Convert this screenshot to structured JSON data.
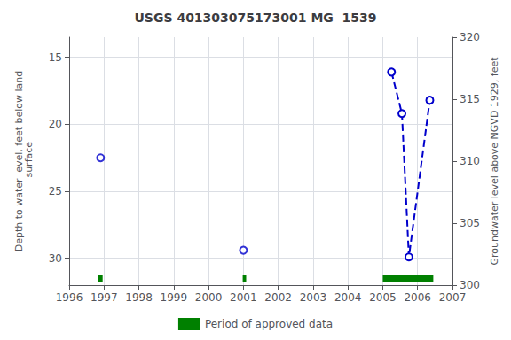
{
  "chart_data": {
    "type": "line",
    "title": "USGS 401303075173001 MG  1539",
    "ylabel": "Depth to water level, feet below land\n surface",
    "y2label": "Groundwater level above NGVD 1929, feet",
    "xlim": [
      1996,
      2007
    ],
    "xticks": [
      1996,
      1997,
      1998,
      1999,
      2000,
      2001,
      2002,
      2003,
      2004,
      2005,
      2006,
      2007
    ],
    "ylim": [
      32,
      13.5
    ],
    "yticks": [
      15,
      20,
      25,
      30
    ],
    "y2lim": [
      300,
      320
    ],
    "y2ticks": [
      300,
      305,
      310,
      315,
      320
    ],
    "grid": true,
    "series": [
      {
        "type": "scatter",
        "marker": "open_circle",
        "color": "#0000cc",
        "x": [
          1996.9,
          2001.0
        ],
        "values": [
          22.5,
          29.4
        ]
      },
      {
        "type": "line",
        "line_style": "dashed",
        "marker": "open_circle",
        "color": "#0000cc",
        "x": [
          2005.25,
          2005.55,
          2005.75,
          2006.35
        ],
        "values": [
          16.1,
          19.2,
          29.9,
          18.2
        ]
      },
      {
        "type": "periods",
        "name": "Period of approved data",
        "color": "#008000",
        "periods": [
          [
            1996.83,
            1996.96
          ],
          [
            2000.98,
            2001.08
          ],
          [
            2005.0,
            2006.45
          ]
        ]
      }
    ]
  }
}
